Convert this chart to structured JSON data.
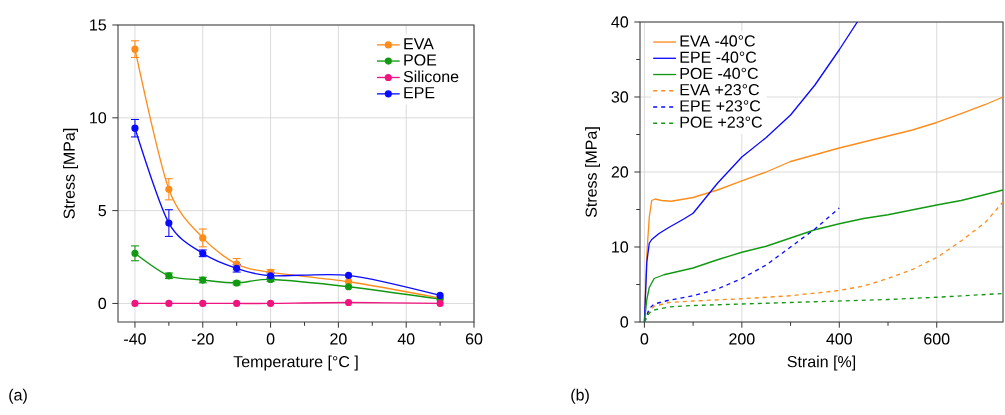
{
  "chart_data": [
    {
      "type": "line",
      "xlabel": "Temperature [°C ]",
      "ylabel": "Stress [MPa]",
      "x": [
        -40,
        -30,
        -20,
        -10,
        0,
        23,
        50
      ],
      "xlim": [
        -45,
        60
      ],
      "ylim": [
        -1,
        15
      ],
      "xticks": [
        -40,
        -20,
        0,
        20,
        40,
        60
      ],
      "yticks": [
        0,
        5,
        10,
        15
      ],
      "grid": true,
      "legend": "top right",
      "marker": "circle",
      "annotations": [
        "(a)"
      ],
      "series": [
        {
          "name": "EVA",
          "color": "#ff8c1a",
          "values": [
            13.7,
            6.15,
            3.53,
            2.12,
            1.67,
            1.17,
            0.29
          ],
          "errors": [
            0.45,
            0.57,
            0.48,
            0.3,
            0.15,
            null,
            null
          ]
        },
        {
          "name": "POE",
          "color": "#119911",
          "values": [
            2.7,
            1.49,
            1.26,
            1.1,
            1.29,
            0.9,
            0.23
          ],
          "errors": [
            0.4,
            0.15,
            0.15,
            0.1,
            0.1,
            null,
            null
          ]
        },
        {
          "name": "Silicone",
          "color": "#f0147f",
          "values": [
            0.0,
            0.0,
            0.0,
            0.0,
            0.0,
            0.05,
            0.0
          ]
        },
        {
          "name": "EPE",
          "color": "#0a0aff",
          "values": [
            9.44,
            4.33,
            2.7,
            1.89,
            1.49,
            1.51,
            0.43
          ],
          "errors": [
            0.47,
            0.72,
            0.18,
            0.2,
            0.15,
            null,
            null
          ]
        }
      ]
    },
    {
      "type": "line",
      "xlabel": "Strain [%]",
      "ylabel": "Stress [MPa]",
      "xlim": [
        -9,
        736
      ],
      "ylim": [
        0,
        40
      ],
      "xticks": [
        0,
        200,
        400,
        600
      ],
      "yticks": [
        0,
        10,
        20,
        30,
        40
      ],
      "grid": true,
      "legend": "top left",
      "annotations": [
        "(b)"
      ],
      "series": [
        {
          "name": "EVA -40°C",
          "color": "#ff8c1a",
          "line_style": "solid",
          "x": [
            0,
            5,
            10,
            15,
            22,
            35,
            55,
            100,
            150,
            200,
            250,
            300,
            350,
            400,
            450,
            500,
            550,
            600,
            650,
            700,
            736
          ],
          "values": [
            0,
            9,
            14,
            16.2,
            16.4,
            16.2,
            16.1,
            16.6,
            17.6,
            18.8,
            20.0,
            21.4,
            22.3,
            23.2,
            24.0,
            24.8,
            25.6,
            26.6,
            27.8,
            29.0,
            30.0
          ]
        },
        {
          "name": "EPE -40°C",
          "color": "#0a0aff",
          "line_style": "solid",
          "x": [
            0,
            5,
            10,
            15,
            30,
            50,
            80,
            100,
            130,
            150,
            200,
            250,
            300,
            350,
            400,
            437
          ],
          "values": [
            0,
            8,
            10.5,
            11.0,
            11.8,
            12.6,
            13.7,
            14.5,
            16.9,
            18.5,
            22.0,
            24.6,
            27.6,
            31.6,
            36.3,
            40
          ]
        },
        {
          "name": "POE -40°C",
          "color": "#119911",
          "line_style": "solid",
          "x": [
            0,
            5,
            10,
            20,
            40,
            60,
            100,
            150,
            200,
            250,
            300,
            350,
            400,
            450,
            500,
            600,
            650,
            700,
            736
          ],
          "values": [
            0,
            3,
            4.6,
            5.8,
            6.3,
            6.6,
            7.2,
            8.3,
            9.3,
            10.1,
            11.2,
            12.3,
            13.1,
            13.8,
            14.3,
            15.6,
            16.2,
            17.0,
            17.6
          ]
        },
        {
          "name": "EVA +23°C",
          "color": "#ff8c1a",
          "line_style": "dashed",
          "x": [
            0,
            10,
            20,
            50,
            100,
            200,
            300,
            400,
            450,
            500,
            550,
            600,
            650,
            700,
            736
          ],
          "values": [
            0,
            1.5,
            2.1,
            2.6,
            2.8,
            3.1,
            3.5,
            4.2,
            4.8,
            5.8,
            7.0,
            8.6,
            10.8,
            13.3,
            16.0
          ]
        },
        {
          "name": "EPE +23°C",
          "color": "#0a0aff",
          "line_style": "dashed",
          "x": [
            0,
            10,
            20,
            50,
            100,
            150,
            200,
            250,
            300,
            350,
            400
          ],
          "values": [
            0,
            1.8,
            2.4,
            2.9,
            3.5,
            4.4,
            5.8,
            7.6,
            10.0,
            12.4,
            15.2
          ]
        },
        {
          "name": "POE +23°C",
          "color": "#119911",
          "line_style": "dashed",
          "x": [
            0,
            10,
            20,
            50,
            100,
            200,
            300,
            400,
            500,
            600,
            736
          ],
          "values": [
            0,
            1.2,
            1.6,
            2.0,
            2.2,
            2.4,
            2.6,
            2.8,
            3.0,
            3.3,
            3.8
          ]
        }
      ]
    }
  ]
}
